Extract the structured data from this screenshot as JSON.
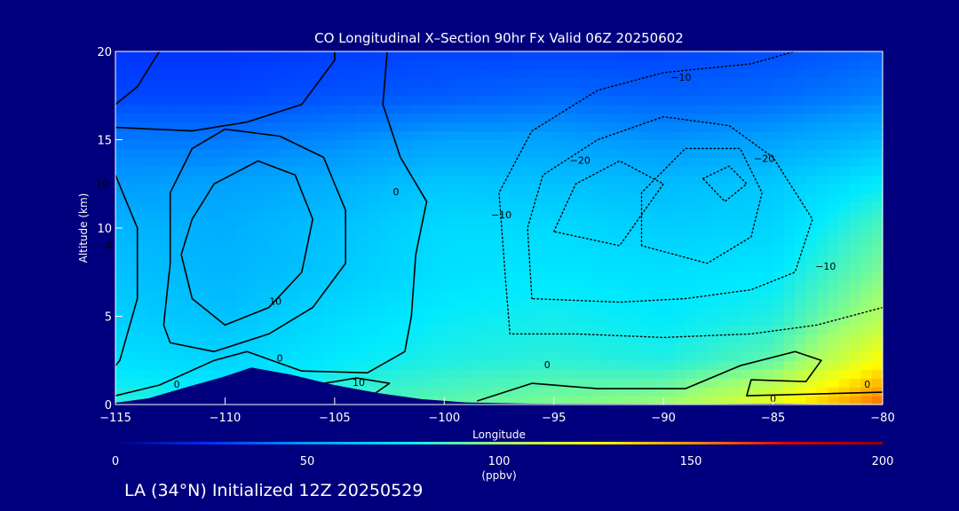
{
  "chart_data": {
    "type": "heatmap",
    "title": "CO Longitudinal X–Section 90hr  Fx Valid 06Z 20250602",
    "xlabel": "Longitude",
    "ylabel": "Altitude (km)",
    "xlim": [
      -115,
      -80
    ],
    "ylim": [
      0,
      20
    ],
    "x_ticks": [
      -115,
      -110,
      -105,
      -100,
      -95,
      -90,
      -85,
      -80
    ],
    "x_tick_labels": [
      "−115",
      "−110",
      "−105",
      "−100",
      "−95",
      "−90",
      "−85",
      "−80"
    ],
    "y_ticks": [
      0,
      5,
      10,
      15,
      20
    ],
    "y_tick_labels": [
      "0",
      "5",
      "10",
      "15",
      "20"
    ],
    "colorbar": {
      "min": 0,
      "max": 200,
      "ticks": [
        0,
        50,
        100,
        150,
        200
      ],
      "tick_labels": [
        "0",
        "50",
        "100",
        "150",
        "200"
      ],
      "unit": "(ppbv)",
      "colors": [
        "#00007e",
        "#0030ff",
        "#009cff",
        "#00eaff",
        "#a0ff70",
        "#ffff00",
        "#ff9000",
        "#e00000",
        "#900000"
      ]
    },
    "co_field": {
      "x": [
        -115,
        -110,
        -105,
        -100,
        -95,
        -90,
        -85,
        -80
      ],
      "y": [
        0,
        2.5,
        5,
        7.5,
        10,
        12.5,
        15,
        17.5,
        20
      ],
      "values": [
        [
          82,
          80,
          86,
          90,
          95,
          100,
          120,
          158
        ],
        [
          72,
          68,
          75,
          80,
          82,
          80,
          90,
          125
        ],
        [
          66,
          62,
          70,
          76,
          78,
          75,
          80,
          105
        ],
        [
          62,
          58,
          64,
          72,
          74,
          72,
          74,
          95
        ],
        [
          58,
          56,
          62,
          70,
          70,
          66,
          68,
          88
        ],
        [
          50,
          52,
          56,
          64,
          62,
          60,
          64,
          76
        ],
        [
          42,
          42,
          46,
          52,
          52,
          48,
          52,
          60
        ],
        [
          30,
          30,
          33,
          35,
          38,
          36,
          38,
          44
        ],
        [
          26,
          26,
          28,
          30,
          30,
          30,
          32,
          36
        ]
      ]
    },
    "anomaly_contours": [
      {
        "level": 10,
        "style": "solid",
        "points": [
          [
            -111.5,
            10.5
          ],
          [
            -110.5,
            12.5
          ],
          [
            -108.5,
            13.8
          ],
          [
            -106.8,
            13
          ],
          [
            -106,
            10.5
          ],
          [
            -106.5,
            7.5
          ],
          [
            -108,
            5.5
          ],
          [
            -110,
            4.5
          ],
          [
            -111.5,
            6
          ],
          [
            -112,
            8.5
          ],
          [
            -111.5,
            10.5
          ]
        ]
      },
      {
        "level": 10,
        "style": "solid",
        "points": [
          [
            -112.8,
            4.5
          ],
          [
            -112.5,
            8
          ],
          [
            -112.5,
            12
          ],
          [
            -111.5,
            14.5
          ],
          [
            -110,
            15.6
          ],
          [
            -107.5,
            15.2
          ],
          [
            -105.5,
            14
          ],
          [
            -104.5,
            11
          ],
          [
            -104.5,
            8
          ],
          [
            -106,
            5.5
          ],
          [
            -108,
            4
          ],
          [
            -110.5,
            3
          ],
          [
            -112.5,
            3.5
          ],
          [
            -112.8,
            4.5
          ]
        ]
      },
      {
        "level": 10,
        "style": "solid",
        "points": [
          [
            -105.5,
            1.2
          ],
          [
            -104,
            1.5
          ],
          [
            -102.5,
            1.2
          ],
          [
            -103.2,
            0.6
          ],
          [
            -105.5,
            0.8
          ],
          [
            -105.5,
            1.2
          ]
        ]
      },
      {
        "level": 0,
        "style": "solid",
        "points": [
          [
            -115,
            15.7
          ],
          [
            -111.5,
            15.5
          ],
          [
            -109,
            16
          ],
          [
            -106.5,
            17
          ],
          [
            -105,
            19.5
          ],
          [
            -105,
            20
          ]
        ]
      },
      {
        "level": 0,
        "style": "solid",
        "points": [
          [
            -115,
            17
          ],
          [
            -114,
            18
          ],
          [
            -113,
            20
          ]
        ]
      },
      {
        "level": 0,
        "style": "solid",
        "points": [
          [
            -115,
            13
          ],
          [
            -114,
            10
          ],
          [
            -114,
            6
          ],
          [
            -114.8,
            2.5
          ],
          [
            -115,
            2.2
          ]
        ]
      },
      {
        "level": 0,
        "style": "solid",
        "points": [
          [
            -102.6,
            20
          ],
          [
            -102.8,
            17
          ],
          [
            -102,
            14
          ],
          [
            -100.8,
            11.5
          ],
          [
            -101.3,
            8.5
          ],
          [
            -101.5,
            5
          ],
          [
            -101.8,
            3
          ],
          [
            -103.5,
            1.8
          ],
          [
            -106.5,
            1.9
          ],
          [
            -109,
            3
          ],
          [
            -110.5,
            2.5
          ],
          [
            -113,
            1.1
          ],
          [
            -115,
            0.5
          ]
        ]
      },
      {
        "level": 0,
        "style": "solid",
        "points": [
          [
            -98.5,
            0.2
          ],
          [
            -96,
            1.2
          ],
          [
            -93,
            0.9
          ],
          [
            -89,
            0.9
          ],
          [
            -86.5,
            2.2
          ],
          [
            -84,
            3
          ],
          [
            -82.8,
            2.5
          ],
          [
            -83.5,
            1.3
          ],
          [
            -86,
            1.4
          ],
          [
            -86.2,
            0.5
          ],
          [
            -83,
            0.6
          ],
          [
            -80,
            0.7
          ]
        ]
      },
      {
        "level": -10,
        "style": "dotted",
        "points": [
          [
            -80,
            5.5
          ],
          [
            -83,
            4.5
          ],
          [
            -86,
            4
          ],
          [
            -90,
            3.8
          ],
          [
            -94,
            4
          ],
          [
            -97,
            4
          ],
          [
            -97.2,
            7
          ],
          [
            -97.5,
            12
          ],
          [
            -96,
            15.5
          ],
          [
            -93,
            17.8
          ],
          [
            -90,
            18.8
          ],
          [
            -86,
            19.3
          ],
          [
            -84,
            20
          ]
        ]
      },
      {
        "level": -10,
        "style": "dotted",
        "points": [
          [
            -96,
            6
          ],
          [
            -96.2,
            10
          ],
          [
            -95.5,
            13
          ],
          [
            -93,
            15
          ],
          [
            -90,
            16.3
          ],
          [
            -87,
            15.8
          ],
          [
            -85,
            14
          ],
          [
            -83.2,
            10.5
          ],
          [
            -84,
            7.5
          ],
          [
            -86,
            6.5
          ],
          [
            -89,
            6
          ],
          [
            -92,
            5.8
          ],
          [
            -96,
            6
          ]
        ]
      },
      {
        "level": -20,
        "style": "dotted",
        "points": [
          [
            -95,
            9.8
          ],
          [
            -94,
            12.5
          ],
          [
            -92,
            13.8
          ],
          [
            -90,
            12.5
          ],
          [
            -92,
            9
          ],
          [
            -95,
            9.8
          ]
        ]
      },
      {
        "level": -20,
        "style": "dotted",
        "points": [
          [
            -91,
            9
          ],
          [
            -91,
            12
          ],
          [
            -89,
            14.5
          ],
          [
            -86.5,
            14.5
          ],
          [
            -85.5,
            12
          ],
          [
            -86,
            9.5
          ],
          [
            -88,
            8
          ],
          [
            -91,
            9
          ]
        ]
      },
      {
        "level": -20,
        "style": "dotted",
        "points": [
          [
            -88.2,
            12.8
          ],
          [
            -87,
            13.5
          ],
          [
            -86.2,
            12.5
          ],
          [
            -87.2,
            11.5
          ],
          [
            -88.2,
            12.8
          ]
        ]
      }
    ],
    "contour_labels": [
      {
        "text": "10",
        "x": -115.6,
        "y": 12.5
      },
      {
        "text": "0",
        "x": -115.3,
        "y": 9
      },
      {
        "text": "0",
        "x": -102.2,
        "y": 12
      },
      {
        "text": "10",
        "x": -107.7,
        "y": 5.8
      },
      {
        "text": "0",
        "x": -107.5,
        "y": 2.6
      },
      {
        "text": "10",
        "x": -103.9,
        "y": 1.2
      },
      {
        "text": "0",
        "x": -112.2,
        "y": 1.1
      },
      {
        "text": "0",
        "x": -95.3,
        "y": 2.2
      },
      {
        "text": "0",
        "x": -85,
        "y": 0.3
      },
      {
        "text": "0",
        "x": -80.7,
        "y": 1.1
      },
      {
        "text": "−10",
        "x": -89.2,
        "y": 18.5
      },
      {
        "text": "−20",
        "x": -93.8,
        "y": 13.8
      },
      {
        "text": "−20",
        "x": -85.4,
        "y": 13.9
      },
      {
        "text": "−10",
        "x": -97.4,
        "y": 10.7
      },
      {
        "text": "−10",
        "x": -82.6,
        "y": 7.8
      }
    ],
    "terrain": [
      [
        -115,
        0.1
      ],
      [
        -113.5,
        0.35
      ],
      [
        -112,
        0.9
      ],
      [
        -110,
        1.6
      ],
      [
        -108.8,
        2.1
      ],
      [
        -107,
        1.7
      ],
      [
        -105,
        1.1
      ],
      [
        -103,
        0.65
      ],
      [
        -101,
        0.3
      ],
      [
        -99,
        0.12
      ],
      [
        -96,
        0.05
      ],
      [
        -92,
        0.04
      ],
      [
        -88,
        0.03
      ],
      [
        -85,
        0.05
      ],
      [
        -83,
        0.03
      ],
      [
        -80,
        0.02
      ]
    ]
  },
  "footer": {
    "label": "LA (34°N) Initialized 12Z 20250529"
  }
}
